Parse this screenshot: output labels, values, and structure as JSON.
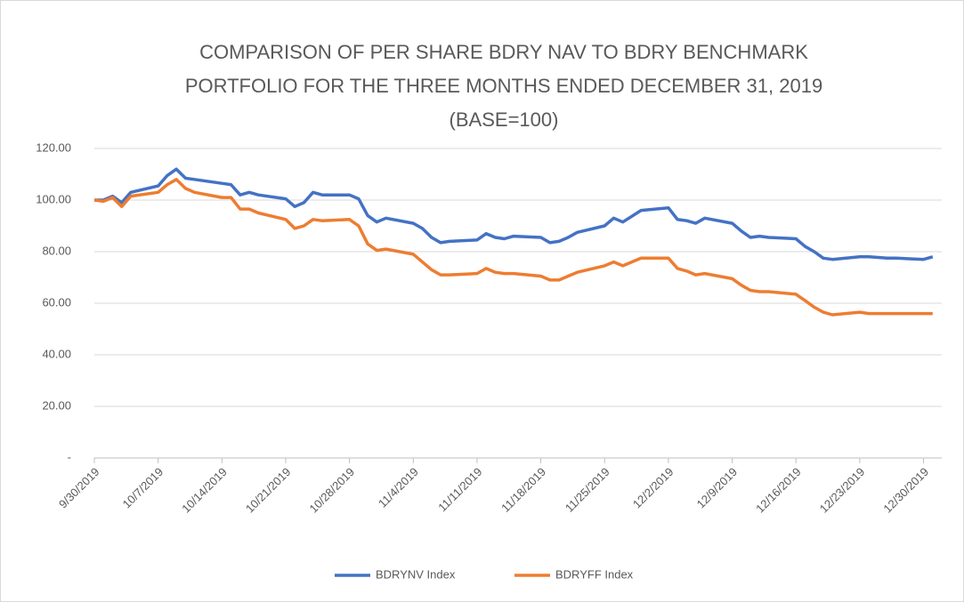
{
  "chart_data": {
    "type": "line",
    "title": [
      "COMPARISON OF PER SHARE BDRY NAV TO BDRY BENCHMARK",
      "PORTFOLIO FOR THE THREE MONTHS ENDED DECEMBER 31, 2019",
      "(BASE=100)"
    ],
    "x": [
      "9/30/2019",
      "10/1/2019",
      "10/2/2019",
      "10/3/2019",
      "10/4/2019",
      "10/7/2019",
      "10/8/2019",
      "10/9/2019",
      "10/10/2019",
      "10/11/2019",
      "10/14/2019",
      "10/15/2019",
      "10/16/2019",
      "10/17/2019",
      "10/18/2019",
      "10/21/2019",
      "10/22/2019",
      "10/23/2019",
      "10/24/2019",
      "10/25/2019",
      "10/28/2019",
      "10/29/2019",
      "10/30/2019",
      "10/31/2019",
      "11/1/2019",
      "11/4/2019",
      "11/5/2019",
      "11/6/2019",
      "11/7/2019",
      "11/8/2019",
      "11/11/2019",
      "11/12/2019",
      "11/13/2019",
      "11/14/2019",
      "11/15/2019",
      "11/18/2019",
      "11/19/2019",
      "11/20/2019",
      "11/21/2019",
      "11/22/2019",
      "11/25/2019",
      "11/26/2019",
      "11/27/2019",
      "11/29/2019",
      "12/2/2019",
      "12/3/2019",
      "12/4/2019",
      "12/5/2019",
      "12/6/2019",
      "12/9/2019",
      "12/10/2019",
      "12/11/2019",
      "12/12/2019",
      "12/13/2019",
      "12/16/2019",
      "12/17/2019",
      "12/18/2019",
      "12/19/2019",
      "12/20/2019",
      "12/23/2019",
      "12/24/2019",
      "12/26/2019",
      "12/27/2019",
      "12/30/2019",
      "12/31/2019"
    ],
    "series": [
      {
        "name": "BDRYNV Index",
        "color": "#4472c4",
        "values": [
          100,
          100,
          101.5,
          99,
          103,
          105.5,
          109.5,
          112,
          108.5,
          108,
          106.5,
          106,
          102,
          103,
          102,
          100.5,
          97.5,
          99,
          103,
          102,
          102,
          100.5,
          94,
          91.5,
          93,
          91,
          89,
          85.5,
          83.5,
          84,
          84.5,
          87,
          85.5,
          85,
          86,
          85.5,
          83.5,
          84,
          85.5,
          87.5,
          90,
          93,
          91.5,
          96,
          97,
          92.5,
          92,
          91,
          93,
          91,
          88,
          85.5,
          86,
          85.5,
          85,
          82,
          80,
          77.5,
          77,
          78,
          78,
          77.5,
          77.5,
          77,
          78
        ]
      },
      {
        "name": "BDRYFF Index",
        "color": "#ed7d31",
        "values": [
          100,
          99.5,
          101,
          97.5,
          101.5,
          103,
          106,
          108,
          104.5,
          103,
          101,
          101,
          96.5,
          96.5,
          95,
          92.5,
          89,
          90,
          92.5,
          92,
          92.5,
          90,
          83,
          80.5,
          81,
          79,
          76,
          73,
          71,
          71,
          71.5,
          73.5,
          72,
          71.5,
          71.5,
          70.5,
          69,
          69,
          70.5,
          72,
          74.5,
          76,
          74.5,
          77.5,
          77.5,
          73.5,
          72.5,
          71,
          71.5,
          69.5,
          67,
          65,
          64.5,
          64.5,
          63.5,
          61,
          58.5,
          56.5,
          55.5,
          56.5,
          56,
          56,
          56,
          56,
          56
        ]
      }
    ],
    "xlim": [
      "9/30/2019",
      "1/1/2020"
    ],
    "xticks": [
      "9/30/2019",
      "10/7/2019",
      "10/14/2019",
      "10/21/2019",
      "10/28/2019",
      "11/4/2019",
      "11/11/2019",
      "11/18/2019",
      "11/25/2019",
      "12/2/2019",
      "12/9/2019",
      "12/16/2019",
      "12/23/2019",
      "12/30/2019"
    ],
    "ylim": [
      0,
      120
    ],
    "yticks": [
      {
        "value": 0,
        "label": "-"
      },
      {
        "value": 20,
        "label": "20.00"
      },
      {
        "value": 40,
        "label": "40.00"
      },
      {
        "value": 60,
        "label": "60.00"
      },
      {
        "value": 80,
        "label": "80.00"
      },
      {
        "value": 100,
        "label": "100.00"
      },
      {
        "value": 120,
        "label": "120.00"
      }
    ],
    "grid": true,
    "legend": "bottom"
  }
}
